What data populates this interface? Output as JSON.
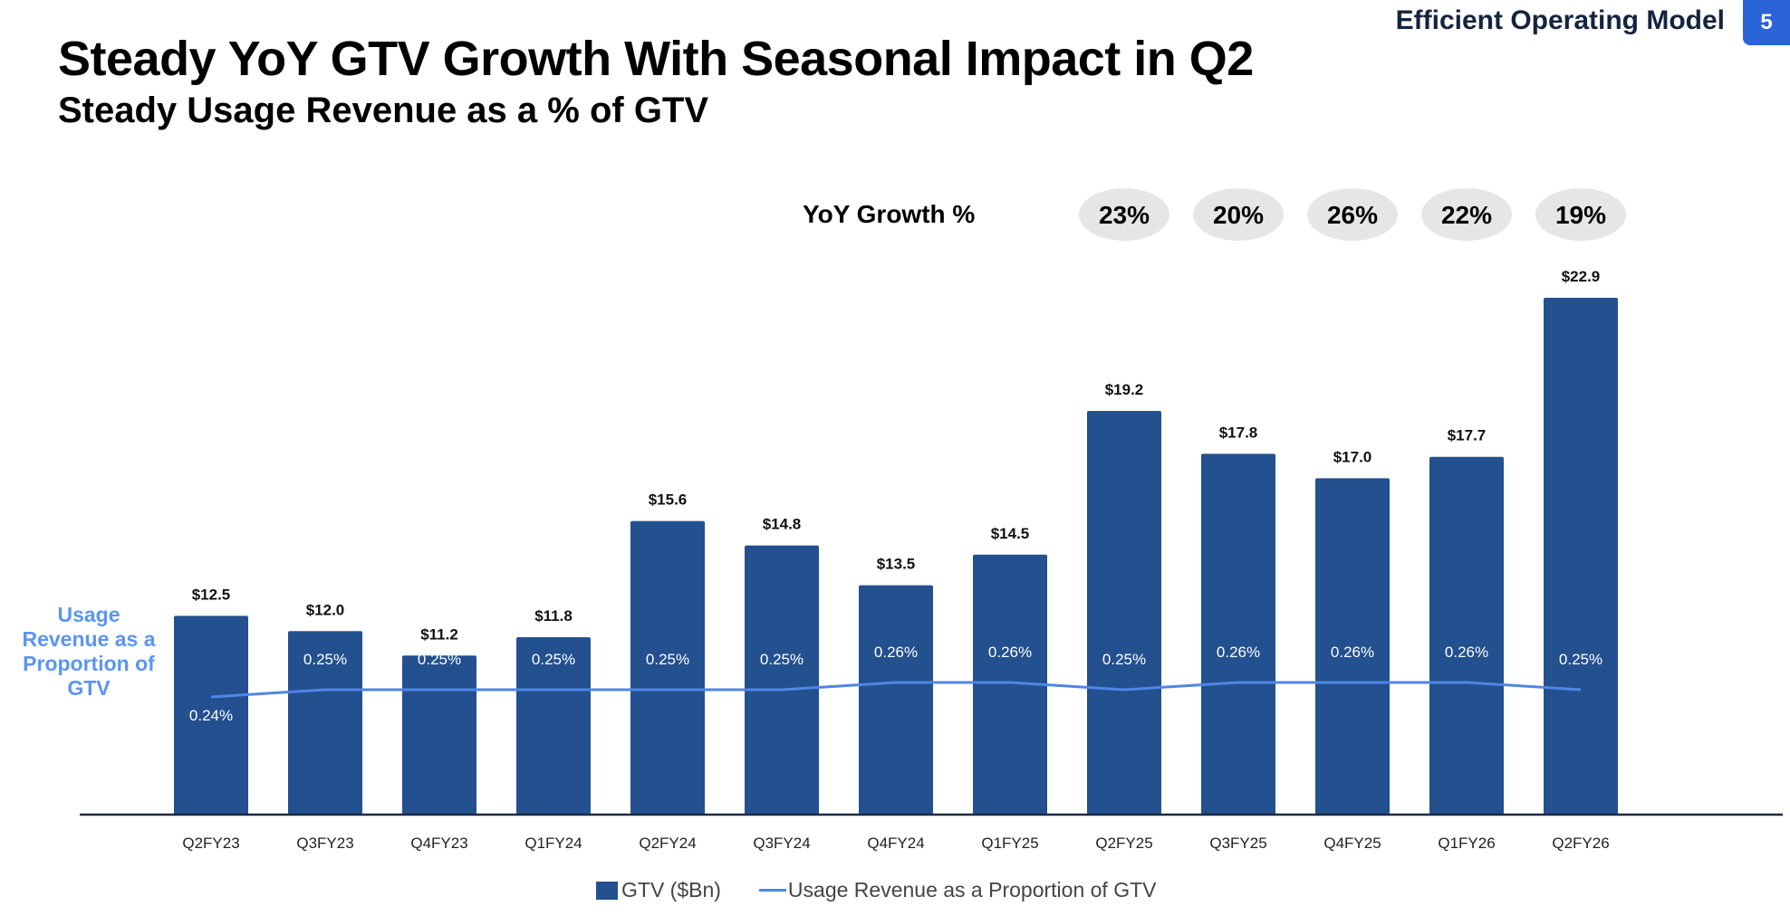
{
  "header": {
    "title": "Steady YoY GTV Growth With Seasonal Impact in Q2",
    "subtitle": "Steady Usage Revenue as a % of GTV",
    "section": "Efficient Operating Model",
    "page_number": "5"
  },
  "colors": {
    "bar": "#23508e",
    "line": "#4f86e6",
    "side_label": "#5b95f0",
    "badge": "#2a64d6",
    "pill": "#e6e6e6"
  },
  "chart_data": {
    "type": "bar",
    "categories": [
      "Q2FY23",
      "Q3FY23",
      "Q4FY23",
      "Q1FY24",
      "Q2FY24",
      "Q3FY24",
      "Q4FY24",
      "Q1FY25",
      "Q2FY25",
      "Q3FY25",
      "Q4FY25",
      "Q1FY26",
      "Q2FY26"
    ],
    "series": [
      {
        "name": "GTV ($Bn)",
        "type": "bar",
        "values": [
          12.5,
          12.0,
          11.2,
          11.8,
          15.6,
          14.8,
          13.5,
          14.5,
          19.2,
          17.8,
          17.0,
          17.7,
          22.9
        ],
        "labels": [
          "$12.5",
          "$12.0",
          "$11.2",
          "$11.8",
          "$15.6",
          "$14.8",
          "$13.5",
          "$14.5",
          "$19.2",
          "$17.8",
          "$17.0",
          "$17.7",
          "$22.9"
        ]
      },
      {
        "name": "Usage Revenue as a Proportion of GTV",
        "type": "line",
        "values": [
          0.24,
          0.25,
          0.25,
          0.25,
          0.25,
          0.25,
          0.26,
          0.26,
          0.25,
          0.26,
          0.26,
          0.26,
          0.25
        ],
        "labels": [
          "0.24%",
          "0.25%",
          "0.25%",
          "0.25%",
          "0.25%",
          "0.25%",
          "0.26%",
          "0.26%",
          "0.25%",
          "0.26%",
          "0.26%",
          "0.26%",
          "0.25%"
        ]
      }
    ],
    "yoy_growth": {
      "label": "YoY Growth %",
      "categories": [
        "Q2FY25",
        "Q3FY25",
        "Q4FY25",
        "Q1FY26",
        "Q2FY26"
      ],
      "values": [
        "23%",
        "20%",
        "26%",
        "22%",
        "19%"
      ]
    },
    "side_label": "Usage Revenue as a Proportion of GTV",
    "ylim": [
      6,
      24
    ],
    "grid": false,
    "legend_placement": "bottom-center"
  }
}
